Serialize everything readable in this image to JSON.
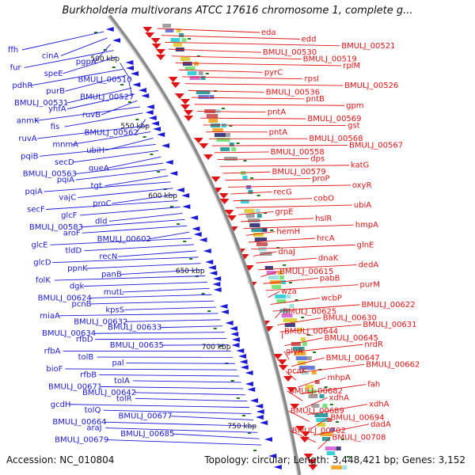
{
  "title": "Burkholderia multivorans ATCC 17616 chromosome 1, complete g...",
  "footer": {
    "accession": "Accession: NC_010804",
    "topology": "Topology: circular; Length: 3,448,421 bp; Genes: 3,152"
  },
  "colors": {
    "reverse": "#1a1ad6",
    "forward": "#e01414",
    "backbone": "#8a8a8a",
    "tick": "#1a7a1a"
  },
  "scale_labels": [
    "500 kbp",
    "550 kbp",
    "600 kbp",
    "650 kbp",
    "700 kbp",
    "750 kbp"
  ],
  "genes_left": [
    "ffh",
    "cinA",
    "pgpA",
    "fur",
    "speE",
    "BMULJ_00510",
    "pdhR",
    "purB",
    "BMULJ_00527",
    "BMULJ_00531",
    "yhfA",
    "ruvB",
    "anmK",
    "fis",
    "BMULJ_00562",
    "ruvA",
    "mnmA",
    "ubiH",
    "pqiB",
    "secD",
    "queA",
    "BMULJ_00563",
    "pqiA",
    "tgt",
    "pqiA",
    "vajC",
    "proC",
    "secF",
    "glcF",
    "dld",
    "BMULJ_00583",
    "aroF",
    "BMULJ_00602",
    "glcE",
    "tldD",
    "recN",
    "glcD",
    "ppnK",
    "panB",
    "folK",
    "dgk",
    "mutL",
    "BMULJ_00624",
    "pcnB",
    "kpsS",
    "miaA",
    "BMULJ_00632",
    "BMULJ_00633",
    "BMULJ_00634",
    "rfbD",
    "BMULJ_00635",
    "rfbA",
    "tolB",
    "pal",
    "bioF",
    "rfbB",
    "tolA",
    "BMULJ_00671",
    "BMULJ_00642",
    "tolR",
    "gcdH",
    "tolQ",
    "BMULJ_00677",
    "BMULJ_00664",
    "araJ",
    "BMULJ_00685",
    "BMULJ_00679"
  ],
  "genes_right": [
    "eda",
    "edd",
    "BMULJ_00521",
    "BMULJ_00530",
    "BMULJ_00519",
    "rplM",
    "pyrC",
    "rpsI",
    "BMULJ_00526",
    "BMULJ_00536",
    "pntB",
    "gpm",
    "pntA",
    "BMULJ_00569",
    "gst",
    "pntA",
    "BMULJ_00568",
    "BMULJ_00567",
    "BMULJ_00558",
    "dps",
    "katG",
    "BMULJ_00579",
    "proP",
    "oxyR",
    "recG",
    "cobO",
    "ubiA",
    "grpE",
    "hslR",
    "hmpA",
    "hemH",
    "hrcA",
    "glnE",
    "dnaJ",
    "dnaK",
    "dedA",
    "BMULJ_00615",
    "pabB",
    "purM",
    "wza",
    "wcbP",
    "BMULJ_00622",
    "BMULJ_00625",
    "BMULJ_00630",
    "BMULJ_00631",
    "BMULJ_00644",
    "BMULJ_00645",
    "nrdR",
    "glyA",
    "BMULJ_00647",
    "BMULJ_00662",
    "pcaK",
    "mhpA",
    "fah",
    "BMULJ_00682",
    "xdhA",
    "xdhA",
    "BMULJ_00689",
    "BMULJ_00694",
    "dadA",
    "BMULJ_00702",
    "BMULJ_00708"
  ]
}
